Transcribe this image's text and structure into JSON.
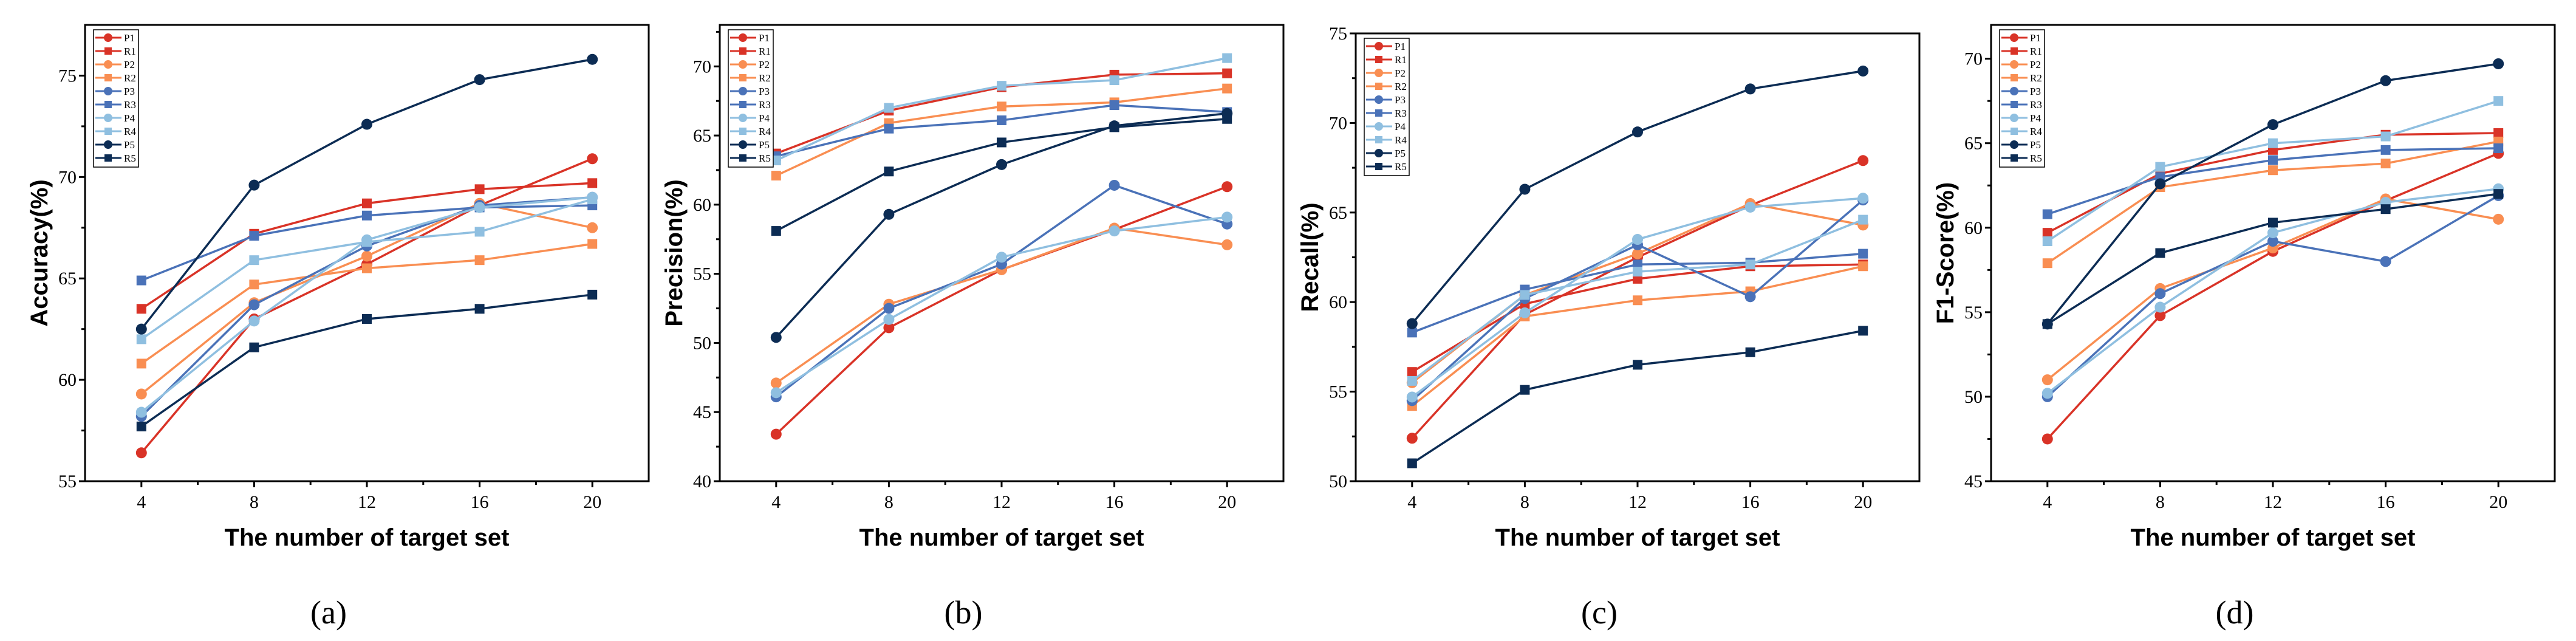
{
  "x_label": "The number of target set",
  "series_names": [
    "P1",
    "R1",
    "P2",
    "R2",
    "P3",
    "R3",
    "P4",
    "R4",
    "P5",
    "R5"
  ],
  "series_colors": [
    "#d93327",
    "#d93327",
    "#f98e52",
    "#f98e52",
    "#4a72b8",
    "#4a72b8",
    "#8fbfe0",
    "#8fbfe0",
    "#0c2c54",
    "#0c2c54"
  ],
  "series_markers": [
    "circle",
    "square",
    "circle",
    "square",
    "circle",
    "square",
    "circle",
    "square",
    "circle",
    "square"
  ],
  "chart_data": [
    {
      "type": "line",
      "panel_label": "(a)",
      "ylabel": "Accuracy(%)",
      "xlabel": "The number of target set",
      "x": [
        4,
        8,
        12,
        16,
        20
      ],
      "xlim": [
        2,
        22
      ],
      "ylim": [
        55,
        77.5
      ],
      "yticks": [
        55,
        60,
        65,
        70,
        75
      ],
      "legend": "top-left",
      "series": [
        {
          "name": "P1",
          "values": [
            56.4,
            63.0,
            65.7,
            68.6,
            70.9
          ]
        },
        {
          "name": "R1",
          "values": [
            63.5,
            67.2,
            68.7,
            69.4,
            69.7
          ]
        },
        {
          "name": "P2",
          "values": [
            59.3,
            63.8,
            66.1,
            68.7,
            67.5
          ]
        },
        {
          "name": "R2",
          "values": [
            60.8,
            64.7,
            65.5,
            65.9,
            66.7
          ]
        },
        {
          "name": "P3",
          "values": [
            58.2,
            63.7,
            66.6,
            68.6,
            69.0
          ]
        },
        {
          "name": "R3",
          "values": [
            64.9,
            67.1,
            68.1,
            68.5,
            68.6
          ]
        },
        {
          "name": "P4",
          "values": [
            58.4,
            62.9,
            66.9,
            68.5,
            69.0
          ]
        },
        {
          "name": "R4",
          "values": [
            62.0,
            65.9,
            66.8,
            67.3,
            68.9
          ]
        },
        {
          "name": "P5",
          "values": [
            62.5,
            69.6,
            72.6,
            74.8,
            75.8
          ]
        },
        {
          "name": "R5",
          "values": [
            57.7,
            61.6,
            63.0,
            63.5,
            64.2
          ]
        }
      ]
    },
    {
      "type": "line",
      "panel_label": "(b)",
      "ylabel": "Precision(%)",
      "xlabel": "The number of target set",
      "x": [
        4,
        8,
        12,
        16,
        20
      ],
      "xlim": [
        2,
        22
      ],
      "ylim": [
        40,
        73
      ],
      "yticks": [
        40,
        45,
        50,
        55,
        60,
        65,
        70
      ],
      "legend": "top-left",
      "series": [
        {
          "name": "P1",
          "values": [
            43.4,
            51.1,
            55.3,
            58.2,
            61.3
          ]
        },
        {
          "name": "R1",
          "values": [
            63.7,
            66.8,
            68.5,
            69.4,
            69.5
          ]
        },
        {
          "name": "P2",
          "values": [
            47.1,
            52.8,
            55.3,
            58.3,
            57.1
          ]
        },
        {
          "name": "R2",
          "values": [
            62.1,
            65.9,
            67.1,
            67.4,
            68.4
          ]
        },
        {
          "name": "P3",
          "values": [
            46.1,
            52.5,
            55.7,
            61.4,
            58.6
          ]
        },
        {
          "name": "R3",
          "values": [
            63.5,
            65.5,
            66.1,
            67.2,
            66.7
          ]
        },
        {
          "name": "P4",
          "values": [
            46.4,
            51.7,
            56.2,
            58.1,
            59.1
          ]
        },
        {
          "name": "R4",
          "values": [
            63.2,
            67.0,
            68.6,
            69.0,
            70.6
          ]
        },
        {
          "name": "P5",
          "values": [
            50.4,
            59.3,
            62.9,
            65.7,
            66.6
          ]
        },
        {
          "name": "R5",
          "values": [
            58.1,
            62.4,
            64.5,
            65.6,
            66.2
          ]
        }
      ]
    },
    {
      "type": "line",
      "panel_label": "(c)",
      "ylabel": "Recall(%)",
      "xlabel": "The number of target set",
      "x": [
        4,
        8,
        12,
        16,
        20
      ],
      "xlim": [
        2,
        22
      ],
      "ylim": [
        50,
        75
      ],
      "yticks": [
        50,
        55,
        60,
        65,
        70,
        75
      ],
      "legend": "top-left",
      "series": [
        {
          "name": "P1",
          "values": [
            52.4,
            59.3,
            62.5,
            65.4,
            67.9
          ]
        },
        {
          "name": "R1",
          "values": [
            56.1,
            59.9,
            61.3,
            62.0,
            62.1
          ]
        },
        {
          "name": "P2",
          "values": [
            55.5,
            60.4,
            62.7,
            65.5,
            64.3
          ]
        },
        {
          "name": "R2",
          "values": [
            54.2,
            59.2,
            60.1,
            60.6,
            62.0
          ]
        },
        {
          "name": "P3",
          "values": [
            54.5,
            60.2,
            63.2,
            60.3,
            65.7
          ]
        },
        {
          "name": "R3",
          "values": [
            58.3,
            60.7,
            62.1,
            62.2,
            62.7
          ]
        },
        {
          "name": "P4",
          "values": [
            54.7,
            59.4,
            63.5,
            65.3,
            65.8
          ]
        },
        {
          "name": "R4",
          "values": [
            55.6,
            60.4,
            61.7,
            62.1,
            64.6
          ]
        },
        {
          "name": "P5",
          "values": [
            58.8,
            66.3,
            69.5,
            71.9,
            72.9
          ]
        },
        {
          "name": "R5",
          "values": [
            51.0,
            55.1,
            56.5,
            57.2,
            58.4
          ]
        }
      ]
    },
    {
      "type": "line",
      "panel_label": "(d)",
      "ylabel": "F1-Score(%)",
      "xlabel": "The number of target set",
      "x": [
        4,
        8,
        12,
        16,
        20
      ],
      "xlim": [
        2,
        22
      ],
      "ylim": [
        45,
        72
      ],
      "yticks": [
        45,
        50,
        55,
        60,
        65,
        70
      ],
      "legend": "top-left",
      "series": [
        {
          "name": "P1",
          "values": [
            47.5,
            54.8,
            58.6,
            61.6,
            64.4
          ]
        },
        {
          "name": "R1",
          "values": [
            59.7,
            63.2,
            64.6,
            65.5,
            65.6
          ]
        },
        {
          "name": "P2",
          "values": [
            51.0,
            56.4,
            58.8,
            61.7,
            60.5
          ]
        },
        {
          "name": "R2",
          "values": [
            57.9,
            62.4,
            63.4,
            63.8,
            65.1
          ]
        },
        {
          "name": "P3",
          "values": [
            50.0,
            56.1,
            59.2,
            58.0,
            61.9
          ]
        },
        {
          "name": "R3",
          "values": [
            60.8,
            63.0,
            64.0,
            64.6,
            64.7
          ]
        },
        {
          "name": "P4",
          "values": [
            50.2,
            55.3,
            59.7,
            61.5,
            62.3
          ]
        },
        {
          "name": "R4",
          "values": [
            59.2,
            63.6,
            65.0,
            65.4,
            67.5
          ]
        },
        {
          "name": "P5",
          "values": [
            54.3,
            62.6,
            66.1,
            68.7,
            69.7
          ]
        },
        {
          "name": "R5",
          "values": [
            54.3,
            58.5,
            60.3,
            61.1,
            62.0
          ]
        }
      ]
    }
  ]
}
